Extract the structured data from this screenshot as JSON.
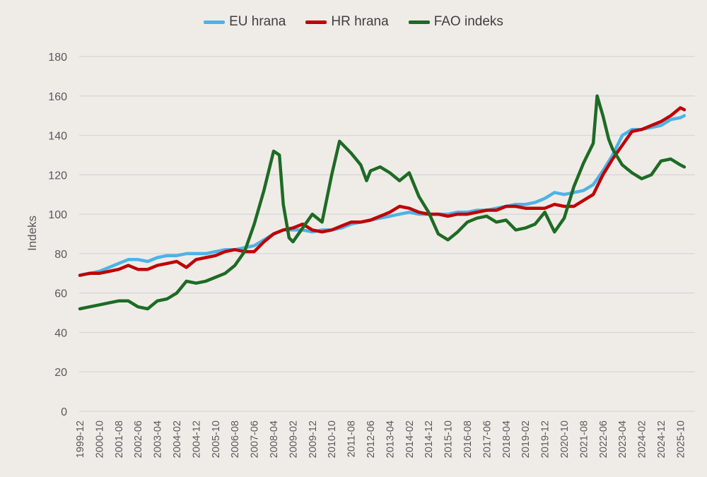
{
  "chart_data": {
    "type": "line",
    "title": "",
    "xlabel": "",
    "ylabel": "Indeks",
    "ylim": [
      0,
      180
    ],
    "yticks": [
      0,
      20,
      40,
      60,
      80,
      100,
      120,
      140,
      160,
      180
    ],
    "xlim": [
      "1999-12",
      "2025-12"
    ],
    "xticks": [
      "1999-12",
      "2000-10",
      "2001-08",
      "2002-06",
      "2003-04",
      "2004-02",
      "2004-12",
      "2005-10",
      "2006-08",
      "2007-06",
      "2008-04",
      "2009-02",
      "2009-12",
      "2010-10",
      "2011-08",
      "2012-06",
      "2013-04",
      "2014-02",
      "2014-12",
      "2015-10",
      "2016-08",
      "2017-06",
      "2018-04",
      "2019-02",
      "2019-12",
      "2020-10",
      "2021-08",
      "2022-06",
      "2023-04",
      "2024-02",
      "2024-12",
      "2025-10"
    ],
    "grid": true,
    "legend_position": "top",
    "series": [
      {
        "name": "EU hrana",
        "color": "#4db3e6",
        "points": [
          [
            "1999-12",
            69
          ],
          [
            "2000-05",
            70
          ],
          [
            "2000-10",
            71
          ],
          [
            "2001-03",
            73
          ],
          [
            "2001-08",
            75
          ],
          [
            "2002-01",
            77
          ],
          [
            "2002-06",
            77
          ],
          [
            "2002-11",
            76
          ],
          [
            "2003-04",
            78
          ],
          [
            "2003-09",
            79
          ],
          [
            "2004-02",
            79
          ],
          [
            "2004-07",
            80
          ],
          [
            "2004-12",
            80
          ],
          [
            "2005-05",
            80
          ],
          [
            "2005-10",
            81
          ],
          [
            "2006-03",
            82
          ],
          [
            "2006-08",
            82
          ],
          [
            "2007-01",
            83
          ],
          [
            "2007-06",
            84
          ],
          [
            "2007-11",
            87
          ],
          [
            "2008-04",
            90
          ],
          [
            "2008-09",
            92
          ],
          [
            "2009-02",
            92
          ],
          [
            "2009-07",
            92
          ],
          [
            "2009-12",
            91
          ],
          [
            "2010-05",
            92
          ],
          [
            "2010-10",
            92
          ],
          [
            "2011-03",
            93
          ],
          [
            "2011-08",
            95
          ],
          [
            "2012-01",
            96
          ],
          [
            "2012-06",
            97
          ],
          [
            "2012-11",
            98
          ],
          [
            "2013-04",
            99
          ],
          [
            "2013-09",
            100
          ],
          [
            "2014-02",
            101
          ],
          [
            "2014-07",
            100
          ],
          [
            "2014-12",
            100
          ],
          [
            "2015-05",
            100
          ],
          [
            "2015-10",
            100
          ],
          [
            "2016-03",
            101
          ],
          [
            "2016-08",
            101
          ],
          [
            "2017-01",
            102
          ],
          [
            "2017-06",
            102
          ],
          [
            "2017-11",
            103
          ],
          [
            "2018-04",
            104
          ],
          [
            "2018-09",
            105
          ],
          [
            "2019-02",
            105
          ],
          [
            "2019-07",
            106
          ],
          [
            "2019-12",
            108
          ],
          [
            "2020-05",
            111
          ],
          [
            "2020-10",
            110
          ],
          [
            "2021-03",
            111
          ],
          [
            "2021-08",
            112
          ],
          [
            "2022-01",
            115
          ],
          [
            "2022-06",
            122
          ],
          [
            "2022-11",
            130
          ],
          [
            "2023-04",
            140
          ],
          [
            "2023-09",
            143
          ],
          [
            "2024-02",
            143
          ],
          [
            "2024-07",
            144
          ],
          [
            "2024-12",
            145
          ],
          [
            "2025-05",
            148
          ],
          [
            "2025-10",
            149
          ],
          [
            "2025-12",
            150
          ]
        ]
      },
      {
        "name": "HR hrana",
        "color": "#c00000",
        "points": [
          [
            "1999-12",
            69
          ],
          [
            "2000-05",
            70
          ],
          [
            "2000-10",
            70
          ],
          [
            "2001-03",
            71
          ],
          [
            "2001-08",
            72
          ],
          [
            "2002-01",
            74
          ],
          [
            "2002-06",
            72
          ],
          [
            "2002-11",
            72
          ],
          [
            "2003-04",
            74
          ],
          [
            "2003-09",
            75
          ],
          [
            "2004-02",
            76
          ],
          [
            "2004-07",
            73
          ],
          [
            "2004-12",
            77
          ],
          [
            "2005-05",
            78
          ],
          [
            "2005-10",
            79
          ],
          [
            "2006-03",
            81
          ],
          [
            "2006-08",
            82
          ],
          [
            "2007-01",
            81
          ],
          [
            "2007-06",
            81
          ],
          [
            "2007-11",
            86
          ],
          [
            "2008-04",
            90
          ],
          [
            "2008-09",
            92
          ],
          [
            "2009-02",
            93
          ],
          [
            "2009-07",
            95
          ],
          [
            "2009-12",
            92
          ],
          [
            "2010-05",
            91
          ],
          [
            "2010-10",
            92
          ],
          [
            "2011-03",
            94
          ],
          [
            "2011-08",
            96
          ],
          [
            "2012-01",
            96
          ],
          [
            "2012-06",
            97
          ],
          [
            "2012-11",
            99
          ],
          [
            "2013-04",
            101
          ],
          [
            "2013-09",
            104
          ],
          [
            "2014-02",
            103
          ],
          [
            "2014-07",
            101
          ],
          [
            "2014-12",
            100
          ],
          [
            "2015-05",
            100
          ],
          [
            "2015-10",
            99
          ],
          [
            "2016-03",
            100
          ],
          [
            "2016-08",
            100
          ],
          [
            "2017-01",
            101
          ],
          [
            "2017-06",
            102
          ],
          [
            "2017-11",
            102
          ],
          [
            "2018-04",
            104
          ],
          [
            "2018-09",
            104
          ],
          [
            "2019-02",
            103
          ],
          [
            "2019-07",
            103
          ],
          [
            "2019-12",
            103
          ],
          [
            "2020-05",
            105
          ],
          [
            "2020-10",
            104
          ],
          [
            "2021-03",
            104
          ],
          [
            "2021-08",
            107
          ],
          [
            "2022-01",
            110
          ],
          [
            "2022-06",
            120
          ],
          [
            "2022-11",
            128
          ],
          [
            "2023-04",
            135
          ],
          [
            "2023-09",
            142
          ],
          [
            "2024-02",
            143
          ],
          [
            "2024-07",
            145
          ],
          [
            "2024-12",
            147
          ],
          [
            "2025-05",
            150
          ],
          [
            "2025-10",
            154
          ],
          [
            "2025-12",
            153
          ]
        ]
      },
      {
        "name": "FAO indeks",
        "color": "#1e6b24",
        "points": [
          [
            "1999-12",
            52
          ],
          [
            "2000-05",
            53
          ],
          [
            "2000-10",
            54
          ],
          [
            "2001-03",
            55
          ],
          [
            "2001-08",
            56
          ],
          [
            "2002-01",
            56
          ],
          [
            "2002-06",
            53
          ],
          [
            "2002-11",
            52
          ],
          [
            "2003-04",
            56
          ],
          [
            "2003-09",
            57
          ],
          [
            "2004-02",
            60
          ],
          [
            "2004-07",
            66
          ],
          [
            "2004-12",
            65
          ],
          [
            "2005-05",
            66
          ],
          [
            "2005-10",
            68
          ],
          [
            "2006-03",
            70
          ],
          [
            "2006-08",
            74
          ],
          [
            "2007-01",
            81
          ],
          [
            "2007-06",
            95
          ],
          [
            "2007-11",
            112
          ],
          [
            "2008-04",
            132
          ],
          [
            "2008-07",
            130
          ],
          [
            "2008-09",
            105
          ],
          [
            "2008-12",
            88
          ],
          [
            "2009-02",
            86
          ],
          [
            "2009-07",
            93
          ],
          [
            "2009-12",
            100
          ],
          [
            "2010-05",
            96
          ],
          [
            "2010-10",
            120
          ],
          [
            "2011-02",
            137
          ],
          [
            "2011-08",
            131
          ],
          [
            "2012-01",
            125
          ],
          [
            "2012-04",
            117
          ],
          [
            "2012-06",
            122
          ],
          [
            "2012-11",
            124
          ],
          [
            "2013-04",
            121
          ],
          [
            "2013-09",
            117
          ],
          [
            "2014-02",
            121
          ],
          [
            "2014-07",
            109
          ],
          [
            "2014-12",
            101
          ],
          [
            "2015-05",
            90
          ],
          [
            "2015-10",
            87
          ],
          [
            "2016-03",
            91
          ],
          [
            "2016-08",
            96
          ],
          [
            "2017-01",
            98
          ],
          [
            "2017-06",
            99
          ],
          [
            "2017-11",
            96
          ],
          [
            "2018-04",
            97
          ],
          [
            "2018-09",
            92
          ],
          [
            "2019-02",
            93
          ],
          [
            "2019-07",
            95
          ],
          [
            "2019-12",
            101
          ],
          [
            "2020-05",
            91
          ],
          [
            "2020-10",
            98
          ],
          [
            "2021-03",
            114
          ],
          [
            "2021-08",
            126
          ],
          [
            "2022-01",
            136
          ],
          [
            "2022-03",
            160
          ],
          [
            "2022-06",
            150
          ],
          [
            "2022-09",
            138
          ],
          [
            "2022-11",
            133
          ],
          [
            "2023-04",
            125
          ],
          [
            "2023-09",
            121
          ],
          [
            "2024-02",
            118
          ],
          [
            "2024-07",
            120
          ],
          [
            "2024-12",
            127
          ],
          [
            "2025-05",
            128
          ],
          [
            "2025-10",
            125
          ],
          [
            "2025-12",
            124
          ]
        ]
      }
    ]
  }
}
